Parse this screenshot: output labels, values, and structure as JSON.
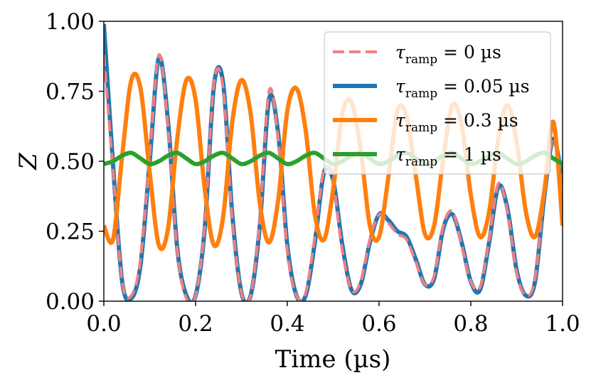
{
  "chart_data": {
    "type": "line",
    "title": "",
    "xlabel": "Time (µs)",
    "ylabel": "Z",
    "xlim": [
      0.0,
      1.0
    ],
    "ylim": [
      0.0,
      1.0
    ],
    "x_ticks": [
      0.0,
      0.2,
      0.4,
      0.6,
      0.8,
      1.0
    ],
    "x_tick_labels": [
      "0.0",
      "0.2",
      "0.4",
      "0.6",
      "0.8",
      "1.0"
    ],
    "y_ticks": [
      0.0,
      0.25,
      0.5,
      0.75,
      1.0
    ],
    "y_tick_labels": [
      "0.00",
      "0.25",
      "0.50",
      "0.75",
      "1.00"
    ],
    "grid": false,
    "legend_position": "top-right",
    "x": [
      0.0,
      0.02,
      0.04,
      0.06,
      0.08,
      0.1,
      0.12,
      0.14,
      0.16,
      0.18,
      0.2,
      0.22,
      0.24,
      0.26,
      0.28,
      0.3,
      0.32,
      0.34,
      0.36,
      0.38,
      0.4,
      0.42,
      0.44,
      0.46,
      0.48,
      0.5,
      0.52,
      0.54,
      0.56,
      0.58,
      0.6,
      0.62,
      0.64,
      0.66,
      0.68,
      0.7,
      0.72,
      0.74,
      0.76,
      0.78,
      0.8,
      0.82,
      0.84,
      0.86,
      0.88,
      0.9,
      0.92,
      0.94,
      0.96,
      0.98,
      1.0
    ],
    "series": [
      {
        "name": "τ_ramp = 0 µs",
        "legend_main": "τ",
        "legend_sub": "ramp",
        "legend_rest": " = 0 µs",
        "color": "#F08080",
        "style": "dashed",
        "values": [
          0.88,
          0.47,
          0.07,
          0.02,
          0.15,
          0.52,
          0.88,
          0.62,
          0.18,
          0.01,
          0.02,
          0.27,
          0.78,
          0.76,
          0.29,
          0.03,
          0.02,
          0.29,
          0.75,
          0.58,
          0.18,
          0.02,
          0.03,
          0.23,
          0.47,
          0.42,
          0.18,
          0.04,
          0.07,
          0.22,
          0.31,
          0.28,
          0.24,
          0.22,
          0.14,
          0.06,
          0.09,
          0.27,
          0.32,
          0.2,
          0.07,
          0.05,
          0.22,
          0.42,
          0.32,
          0.1,
          0.02,
          0.08,
          0.38,
          0.58,
          0.4
        ]
      },
      {
        "name": "τ_ramp = 0.05 µs",
        "legend_main": "τ",
        "legend_sub": "ramp",
        "legend_rest": " = 0.05 µs",
        "color": "#1F77B4",
        "style": "solid",
        "values": [
          0.99,
          0.49,
          0.07,
          0.01,
          0.13,
          0.5,
          0.87,
          0.64,
          0.19,
          0.02,
          0.02,
          0.26,
          0.77,
          0.78,
          0.31,
          0.03,
          0.02,
          0.27,
          0.72,
          0.6,
          0.2,
          0.02,
          0.02,
          0.21,
          0.46,
          0.43,
          0.2,
          0.04,
          0.06,
          0.21,
          0.31,
          0.29,
          0.25,
          0.23,
          0.15,
          0.06,
          0.08,
          0.26,
          0.31,
          0.21,
          0.07,
          0.04,
          0.21,
          0.41,
          0.33,
          0.11,
          0.02,
          0.07,
          0.37,
          0.58,
          0.42
        ]
      },
      {
        "name": "τ_ramp = 0.3 µs",
        "legend_main": "τ",
        "legend_sub": "ramp",
        "legend_rest": " = 0.3 µs",
        "color": "#FF7F0E",
        "style": "solid",
        "values": [
          0.27,
          0.22,
          0.52,
          0.79,
          0.76,
          0.46,
          0.2,
          0.26,
          0.58,
          0.79,
          0.72,
          0.4,
          0.2,
          0.3,
          0.64,
          0.79,
          0.67,
          0.35,
          0.21,
          0.36,
          0.68,
          0.76,
          0.61,
          0.31,
          0.22,
          0.4,
          0.67,
          0.71,
          0.54,
          0.27,
          0.23,
          0.44,
          0.68,
          0.66,
          0.45,
          0.24,
          0.27,
          0.51,
          0.7,
          0.63,
          0.38,
          0.23,
          0.32,
          0.58,
          0.7,
          0.57,
          0.32,
          0.23,
          0.39,
          0.64,
          0.27
        ]
      },
      {
        "name": "τ_ramp = 1 µs",
        "legend_main": "τ",
        "legend_sub": "ramp",
        "legend_rest": " = 1 µs",
        "color": "#2CA02C",
        "style": "solid",
        "values": [
          0.49,
          0.5,
          0.52,
          0.53,
          0.51,
          0.49,
          0.5,
          0.52,
          0.53,
          0.51,
          0.49,
          0.5,
          0.52,
          0.53,
          0.51,
          0.49,
          0.5,
          0.52,
          0.53,
          0.51,
          0.49,
          0.5,
          0.52,
          0.53,
          0.51,
          0.49,
          0.5,
          0.52,
          0.53,
          0.51,
          0.49,
          0.5,
          0.52,
          0.53,
          0.51,
          0.49,
          0.5,
          0.52,
          0.53,
          0.51,
          0.49,
          0.5,
          0.52,
          0.53,
          0.51,
          0.49,
          0.5,
          0.52,
          0.53,
          0.51,
          0.49
        ]
      }
    ]
  }
}
